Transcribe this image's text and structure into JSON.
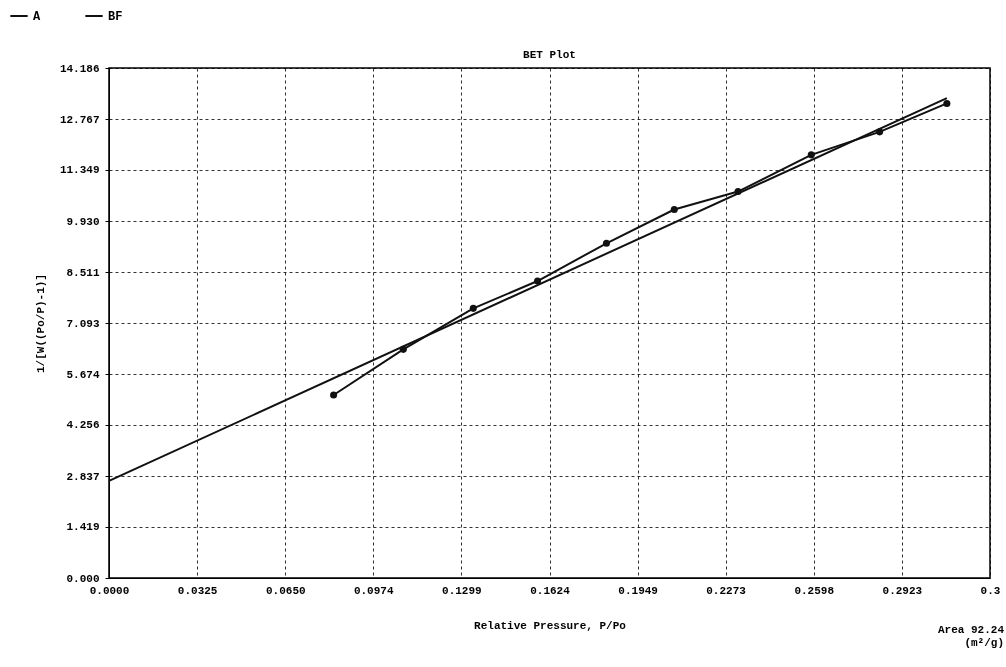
{
  "chart_data": {
    "type": "line",
    "title": "BET Plot",
    "xlabel": "Relative Pressure, P/Po",
    "ylabel": "1/[W((Po/P)-1)]",
    "xlim": [
      0,
      0.3248
    ],
    "ylim": [
      0,
      14.186
    ],
    "xticks": [
      {
        "value": 0,
        "label": "0.0000"
      },
      0.0325,
      {
        "value": 0.065,
        "label": "0.0650"
      },
      0.0974,
      0.1299,
      0.1624,
      0.1949,
      0.2273,
      0.2598,
      0.2923,
      {
        "value": 0.3248,
        "label": "0.3"
      }
    ],
    "yticks": [
      {
        "value": 0,
        "label": "0.000"
      },
      1.419,
      2.837,
      4.256,
      5.674,
      7.093,
      8.511,
      {
        "value": 9.93,
        "label": "9.930"
      },
      11.349,
      12.767,
      14.186
    ],
    "grid": true,
    "legend": "top left",
    "line_style": "solid",
    "series": [
      {
        "name": "A",
        "color": "#111111",
        "marker": "circle",
        "x": [
          0.0828,
          0.1085,
          0.1343,
          0.158,
          0.1834,
          0.2084,
          0.2319,
          0.2589,
          0.2841,
          0.3089
        ],
        "values": [
          5.09,
          6.36,
          7.5,
          8.26,
          9.31,
          10.25,
          10.75,
          11.77,
          12.41,
          13.2
        ]
      },
      {
        "name": "BF",
        "color": "#111111",
        "marker": "none",
        "x": [
          0,
          0.3089
        ],
        "values": [
          2.7,
          13.35
        ]
      }
    ],
    "annotations": [
      "Area 92.24 (m²/g)"
    ]
  }
}
